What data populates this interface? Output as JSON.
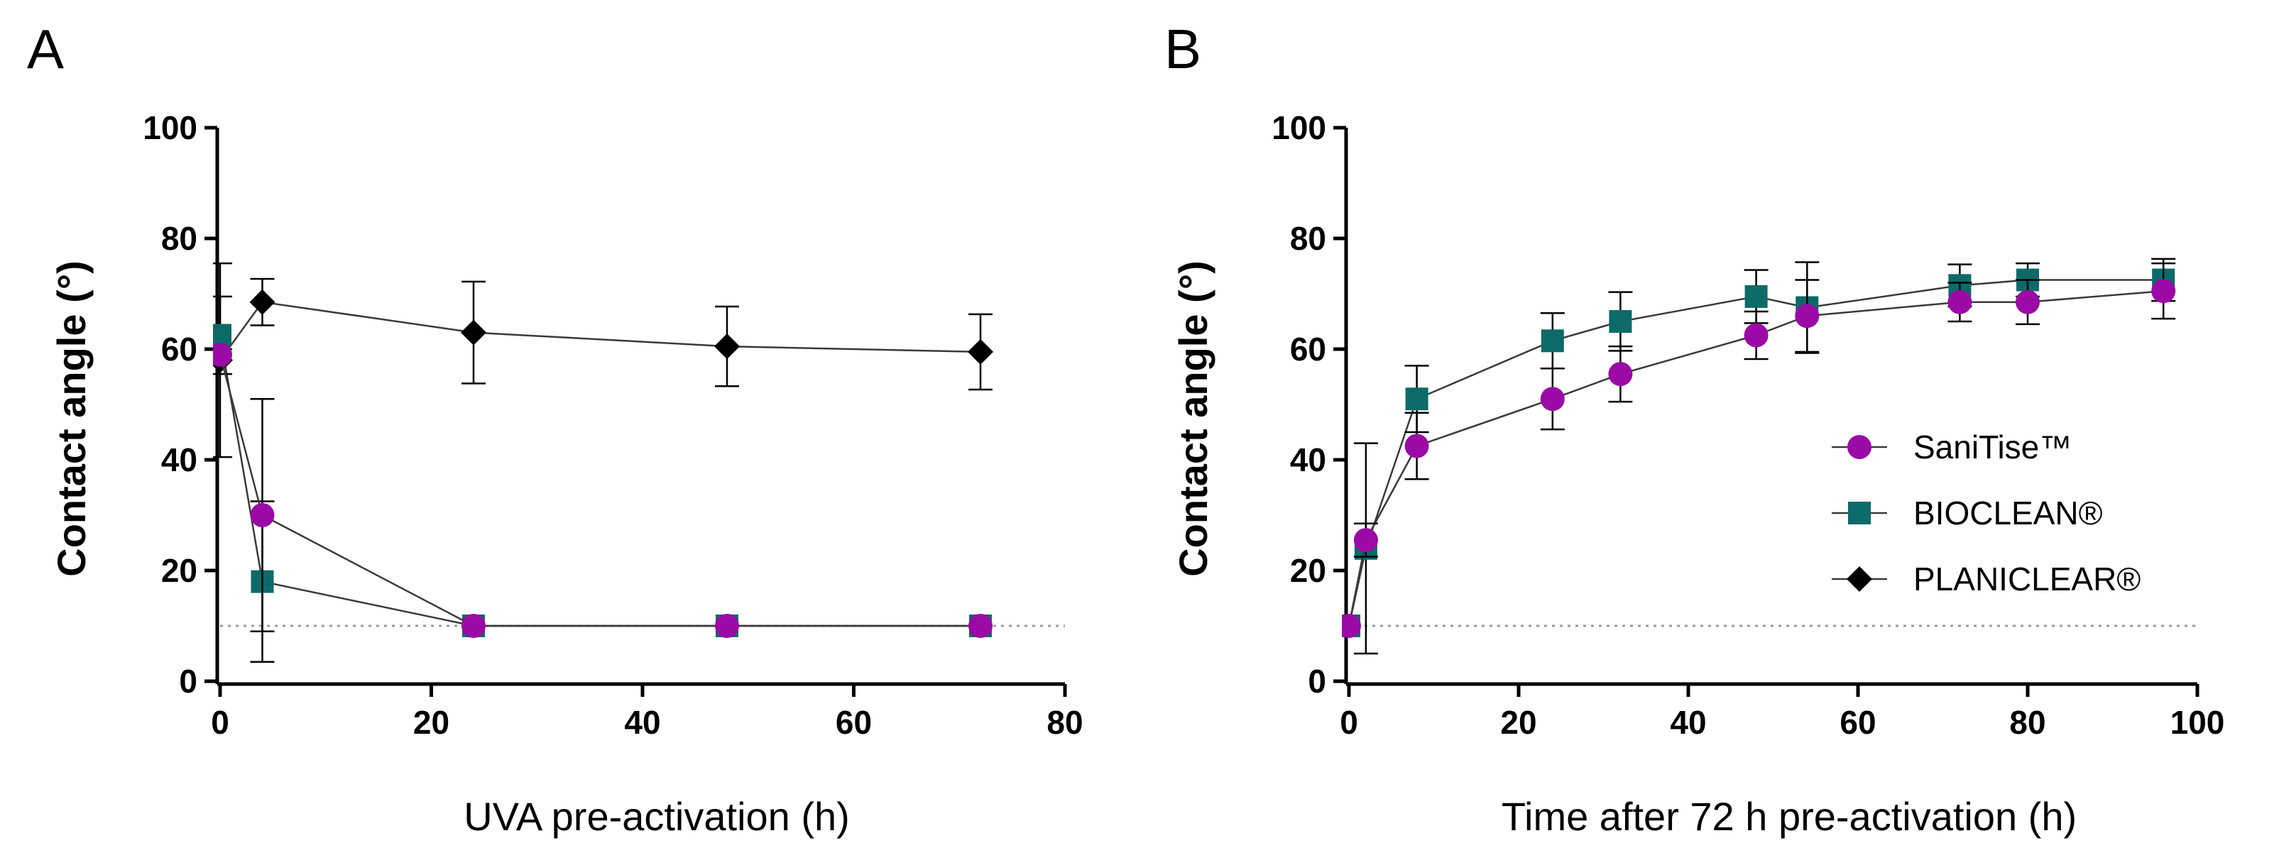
{
  "chart_data": [
    {
      "type": "line",
      "panel_label": "A",
      "xlabel": "UVA pre-activation (h)",
      "ylabel": "Contact angle (°)",
      "xlim": [
        0,
        80
      ],
      "ylim": [
        0,
        100
      ],
      "xticks": [
        "0",
        "20",
        "40",
        "60",
        "80"
      ],
      "yticks": [
        "0",
        "20",
        "40",
        "60",
        "80",
        "100"
      ],
      "reference_line": 10,
      "series": [
        {
          "name": "SaniTise™",
          "marker": "circle",
          "color": "#9b0aa6",
          "x": [
            0,
            4,
            24,
            48,
            72
          ],
          "y": [
            59,
            30,
            10,
            10,
            10
          ],
          "err": [
            1,
            21,
            0,
            0,
            0
          ]
        },
        {
          "name": "BIOCLEAN®",
          "marker": "square",
          "color": "#0c6a69",
          "x": [
            0,
            4,
            24,
            48,
            72
          ],
          "y": [
            62.5,
            18,
            10,
            10,
            10
          ],
          "err": [
            7,
            14.5,
            0,
            0,
            0
          ]
        },
        {
          "name": "PLANICLEAR®",
          "marker": "diamond",
          "color": "#000000",
          "x": [
            0,
            4,
            24,
            48,
            72
          ],
          "y": [
            58,
            68.5,
            63,
            60.5,
            59.5
          ],
          "err": [
            17.5,
            4.2,
            9.2,
            7.2,
            6.8
          ]
        }
      ]
    },
    {
      "type": "line",
      "panel_label": "B",
      "xlabel": "Time after 72 h pre-activation (h)",
      "ylabel": "Contact angle (°)",
      "xlim": [
        0,
        100
      ],
      "ylim": [
        0,
        100
      ],
      "xticks": [
        "0",
        "20",
        "40",
        "60",
        "80",
        "100"
      ],
      "yticks": [
        "0",
        "20",
        "40",
        "60",
        "80",
        "100"
      ],
      "reference_line": 10,
      "legend_position": "center-right",
      "series": [
        {
          "name": "SaniTise™",
          "marker": "circle",
          "color": "#9b0aa6",
          "x": [
            0,
            2,
            8,
            24,
            32,
            48,
            54,
            72,
            80,
            96
          ],
          "y": [
            10,
            25.5,
            42.5,
            51,
            55.5,
            62.5,
            66,
            68.5,
            68.5,
            70.5
          ],
          "err": [
            0,
            3,
            6,
            5.5,
            5,
            4.3,
            6.5,
            3.5,
            4,
            5
          ]
        },
        {
          "name": "BIOCLEAN®",
          "marker": "square",
          "color": "#0c6a69",
          "x": [
            0,
            2,
            8,
            24,
            32,
            48,
            54,
            72,
            80,
            96
          ],
          "y": [
            10,
            24,
            51,
            61.5,
            65,
            69.5,
            67.5,
            71.5,
            72.5,
            72.5
          ],
          "err": [
            0,
            19,
            6,
            5,
            5.3,
            4.8,
            8.2,
            3.8,
            3,
            3.8
          ]
        }
      ]
    }
  ]
}
